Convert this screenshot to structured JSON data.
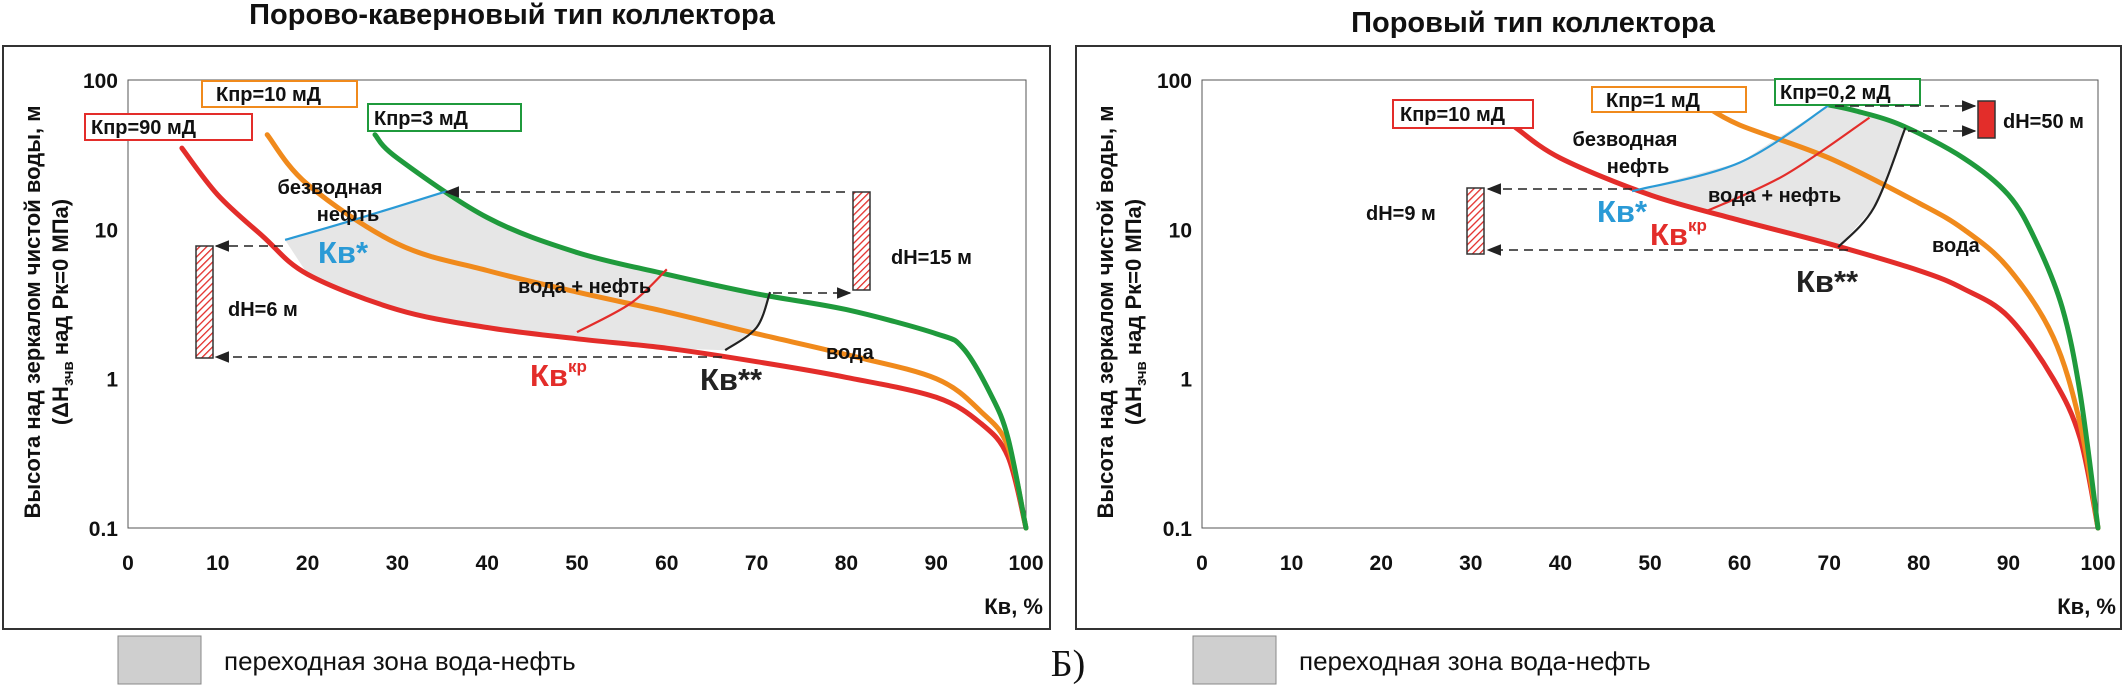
{
  "charts": [
    {
      "title": "Порово-каверновый тип коллектора",
      "ylabel_line1": "Высота над зеркалом чистой воды, м",
      "ylabel_line2_pre": "(ΔH",
      "ylabel_line2_sub": "зчв",
      "ylabel_line2_post": " над Рк=0 МПа)",
      "xlabel": "Кв, %",
      "xticks": [
        "0",
        "10",
        "20",
        "30",
        "40",
        "50",
        "60",
        "70",
        "80",
        "90",
        "100"
      ],
      "yticks": [
        "0.1",
        "1",
        "10",
        "100"
      ],
      "legend_boxes": [
        {
          "text": "Кпр=90 мД",
          "color": "#e32d2a"
        },
        {
          "text": "Кпр=10 мД",
          "color": "#f08a1c"
        },
        {
          "text": "Кпр=3 мД",
          "color": "#1f9a3c"
        }
      ],
      "labels": {
        "oil_line1": "безводная",
        "oil_line2": "нефть",
        "kv_star": "Кв*",
        "water_oil": "вода + нефть",
        "water": "вода",
        "kvkr_main": "Кв",
        "kvkr_sup": "кр",
        "kv_2star": "Кв**",
        "dh_left": "dH=6 м",
        "dh_right": "dH=15 м"
      }
    },
    {
      "title": "Поровый тип коллектора",
      "ylabel_line1": "Высота над зеркалом чистой воды, м",
      "ylabel_line2_pre": "(ΔH",
      "ylabel_line2_sub": "зчв",
      "ylabel_line2_post": " над Рк=0 МПа)",
      "xlabel": "Кв, %",
      "xticks": [
        "0",
        "10",
        "20",
        "30",
        "40",
        "50",
        "60",
        "70",
        "80",
        "90",
        "100"
      ],
      "yticks": [
        "0.1",
        "1",
        "10",
        "100"
      ],
      "legend_boxes": [
        {
          "text": "Кпр=10 мД",
          "color": "#e32d2a"
        },
        {
          "text": "Кпр=1 мД",
          "color": "#f08a1c"
        },
        {
          "text": "Кпр=0,2 мД",
          "color": "#1f9a3c"
        }
      ],
      "labels": {
        "oil_line1": "безводная",
        "oil_line2": "нефть",
        "kv_star": "Кв*",
        "water_oil": "вода + нефть",
        "water": "вода",
        "kvkr_main": "Кв",
        "kvkr_sup": "кр",
        "kv_2star": "Кв**",
        "dh_left": "dH=9 м",
        "dh_right": "dH=50 м"
      }
    }
  ],
  "legend_text": "переходная зона вода-нефть",
  "panel_label": "Б)",
  "colors": {
    "red": "#e32d2a",
    "orange": "#f08a1c",
    "green": "#1f9a3c",
    "blue": "#2a9ad6",
    "zone_fill": "#e6e6e6",
    "legend_swatch": "#cfcfcf"
  },
  "chart_data": [
    {
      "type": "line",
      "title": "Порово-каверновый тип коллектора",
      "xlabel": "Кв, %",
      "ylabel": "Высота над зеркалом чистой воды, м (ΔHзчв над Рк=0 МПа)",
      "xlim": [
        0,
        100
      ],
      "ylim": [
        0.1,
        100
      ],
      "yscale": "log",
      "series": [
        {
          "name": "Кпр=90 мД",
          "color": "#e32d2a",
          "x": [
            6,
            10,
            15,
            20,
            30,
            40,
            50,
            60,
            70,
            80,
            90,
            95,
            98,
            100
          ],
          "y": [
            35,
            17,
            9,
            5,
            2.9,
            2.2,
            1.85,
            1.6,
            1.3,
            1.02,
            0.75,
            0.5,
            0.3,
            0.1
          ]
        },
        {
          "name": "Кпр=10 мД",
          "color": "#f08a1c",
          "x": [
            15.5,
            20,
            30,
            40,
            50,
            60,
            70,
            80,
            90,
            95,
            98,
            100
          ],
          "y": [
            43,
            20,
            8,
            5.3,
            3.8,
            2.8,
            2.0,
            1.45,
            1.0,
            0.6,
            0.35,
            0.1
          ]
        },
        {
          "name": "Кпр=3 мД",
          "color": "#1f9a3c",
          "x": [
            27.5,
            30,
            40,
            50,
            60,
            70,
            80,
            90,
            93,
            96,
            98,
            100
          ],
          "y": [
            43,
            30,
            12,
            7,
            5,
            3.7,
            2.9,
            2.0,
            1.6,
            0.8,
            0.4,
            0.1
          ]
        }
      ],
      "boundaries": [
        {
          "name": "Кв*",
          "color": "#2a9ad6",
          "x": [
            17.5,
            25,
            35.5
          ],
          "y": [
            8.5,
            11.5,
            18
          ]
        },
        {
          "name": "Кв кр",
          "color": "#e32d2a",
          "x": [
            50,
            56,
            60
          ],
          "y": [
            2.05,
            3.2,
            5.4
          ]
        },
        {
          "name": "Кв**",
          "color": "#222222",
          "x": [
            66.5,
            70,
            71.5
          ],
          "y": [
            1.55,
            2.2,
            3.8
          ]
        }
      ],
      "annotations": [
        {
          "text": "dH=6 м",
          "x": 8.5,
          "y_from": 1.5,
          "y_to": 8.0
        },
        {
          "text": "dH=15 м",
          "x": 81.5,
          "y_from": 4.2,
          "y_to": 18
        }
      ]
    },
    {
      "type": "line",
      "title": "Поровый тип коллектора",
      "xlabel": "Кв, %",
      "ylabel": "Высота над зеркалом чистой воды, м (ΔHзчв над Рк=0 МПа)",
      "xlim": [
        0,
        100
      ],
      "ylim": [
        0.1,
        100
      ],
      "yscale": "log",
      "series": [
        {
          "name": "Кпр=10 мД",
          "color": "#e32d2a",
          "x": [
            35,
            40,
            50,
            60,
            70,
            80,
            85,
            90,
            95,
            98,
            100
          ],
          "y": [
            48,
            30,
            17,
            11.5,
            8.0,
            5.3,
            4.0,
            2.6,
            1.0,
            0.4,
            0.1
          ]
        },
        {
          "name": "Кпр=1 мД",
          "color": "#f08a1c",
          "x": [
            56,
            60,
            70,
            80,
            85,
            90,
            95,
            98,
            100
          ],
          "y": [
            68,
            50,
            30,
            15,
            10,
            5.5,
            1.9,
            0.5,
            0.1
          ]
        },
        {
          "name": "Кпр=0,2 мД",
          "color": "#1f9a3c",
          "x": [
            70,
            73,
            78,
            85,
            90,
            93,
            96,
            98,
            100
          ],
          "y": [
            68,
            62,
            50,
            30,
            17,
            8.5,
            3.0,
            0.8,
            0.1
          ]
        }
      ],
      "boundaries": [
        {
          "name": "Кв*",
          "color": "#2a9ad6",
          "x": [
            48,
            60,
            70
          ],
          "y": [
            18,
            28,
            68
          ]
        },
        {
          "name": "Кв кр",
          "color": "#e32d2a",
          "x": [
            56,
            65,
            74.5
          ],
          "y": [
            13,
            23,
            56
          ]
        },
        {
          "name": "Кв**",
          "color": "#222222",
          "x": [
            71,
            75,
            78.5
          ],
          "y": [
            7.6,
            14,
            48
          ]
        }
      ],
      "annotations": [
        {
          "text": "dH=9 м",
          "x": 30.5,
          "y_from": 7.6,
          "y_to": 18
        },
        {
          "text": "dH=50 м",
          "x": 86,
          "y_from": 45,
          "y_to": 70
        }
      ]
    }
  ]
}
